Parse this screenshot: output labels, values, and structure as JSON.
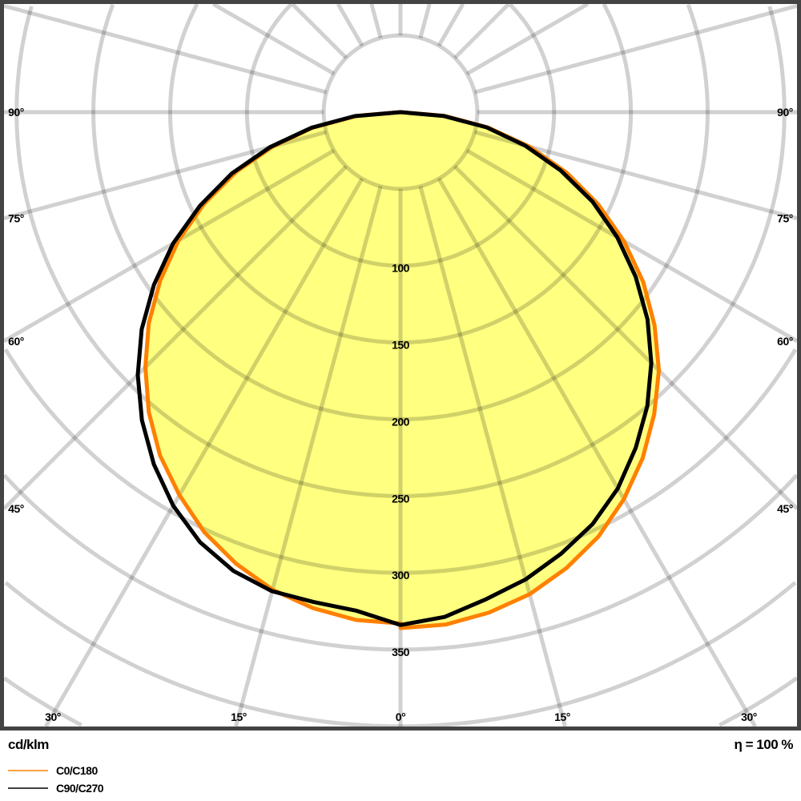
{
  "chart_data": {
    "type": "polar-line",
    "unit_label": "cd/klm",
    "efficiency_label": "η = 100 %",
    "radial_ticks": [
      100,
      150,
      200,
      250,
      300,
      350
    ],
    "radial_grid_step": 50,
    "angle_grid_step_deg": 15,
    "side_angle_labels": [
      "90°",
      "75°",
      "60°",
      "45°"
    ],
    "bottom_angle_labels": [
      "30°",
      "15°",
      "0°",
      "15°",
      "30°"
    ],
    "grid": true,
    "legend_position": "bottom-left",
    "angles_deg": [
      0,
      5,
      10,
      15,
      20,
      25,
      30,
      35,
      40,
      45,
      50,
      55,
      60,
      65,
      70,
      75,
      80,
      85,
      90
    ],
    "series": [
      {
        "name": "C0/C180",
        "color": "#ff8000",
        "right": [
          336,
          335,
          331,
          325,
          316,
          305,
          291,
          275,
          257,
          238,
          216,
          193,
          168,
          142,
          115,
          87,
          58,
          29,
          0
        ],
        "left": [
          333,
          332,
          328,
          322,
          313,
          302,
          288,
          273,
          255,
          235,
          214,
          191,
          167,
          141,
          114,
          86,
          58,
          29,
          0
        ]
      },
      {
        "name": "C90/C270",
        "color": "#000000",
        "right": [
          334,
          330,
          322,
          315,
          306,
          296,
          283,
          267,
          250,
          231,
          210,
          187,
          163,
          138,
          111,
          84,
          57,
          28,
          0
        ],
        "left": [
          334,
          326,
          324,
          323,
          318,
          309,
          296,
          280,
          262,
          242,
          220,
          196,
          171,
          144,
          117,
          88,
          59,
          30,
          0
        ]
      }
    ],
    "fill_color": "#ffff80"
  }
}
